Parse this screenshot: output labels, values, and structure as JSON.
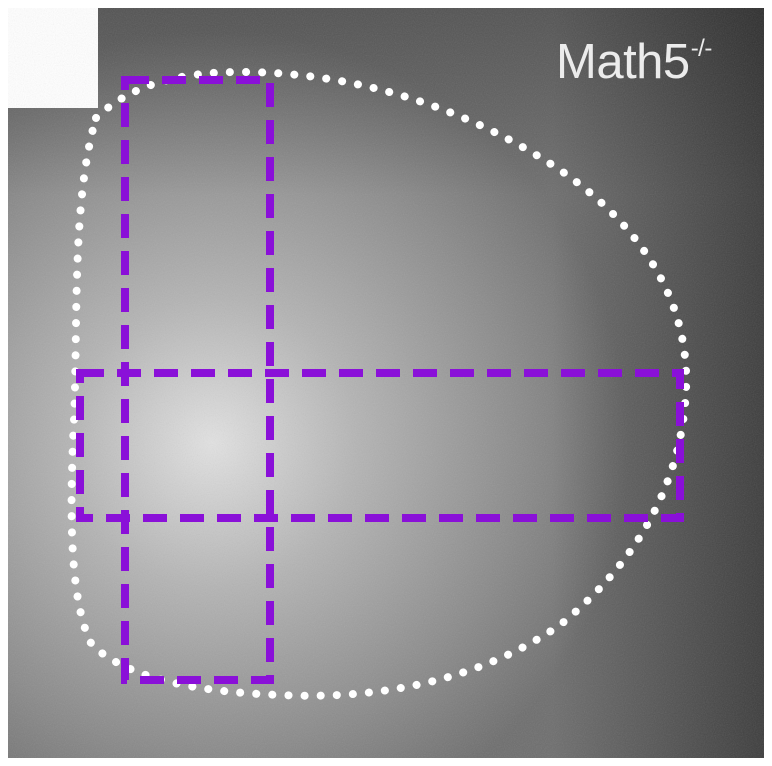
{
  "label": {
    "gene": "Math5",
    "genotype": "-/-"
  },
  "colors": {
    "outline": "#ffffff",
    "roi": "#8a10d8",
    "background": "#6e6e6e"
  }
}
